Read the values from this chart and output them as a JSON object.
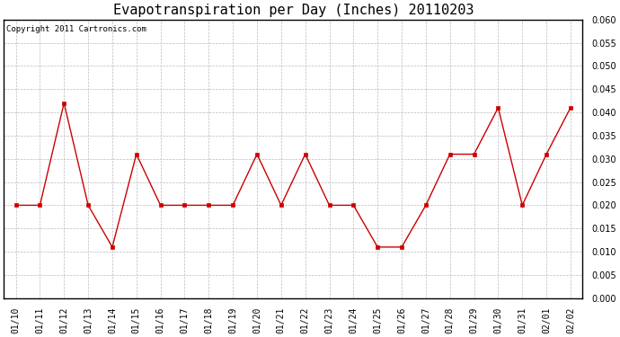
{
  "title": "Evapotranspiration per Day (Inches) 20110203",
  "copyright_text": "Copyright 2011 Cartronics.com",
  "x_labels": [
    "01/10",
    "01/11",
    "01/12",
    "01/13",
    "01/14",
    "01/15",
    "01/16",
    "01/17",
    "01/18",
    "01/19",
    "01/20",
    "01/21",
    "01/22",
    "01/23",
    "01/24",
    "01/25",
    "01/26",
    "01/27",
    "01/28",
    "01/29",
    "01/30",
    "01/31",
    "02/01",
    "02/02"
  ],
  "y_values": [
    0.02,
    0.02,
    0.042,
    0.02,
    0.011,
    0.031,
    0.02,
    0.02,
    0.02,
    0.02,
    0.031,
    0.02,
    0.031,
    0.02,
    0.02,
    0.011,
    0.011,
    0.02,
    0.031,
    0.031,
    0.041,
    0.02,
    0.031,
    0.041
  ],
  "line_color": "#cc0000",
  "marker": "s",
  "marker_size": 2.5,
  "ylim": [
    0.0,
    0.06
  ],
  "yticks": [
    0.0,
    0.005,
    0.01,
    0.015,
    0.02,
    0.025,
    0.03,
    0.035,
    0.04,
    0.045,
    0.05,
    0.055,
    0.06
  ],
  "grid_color": "#bbbbbb",
  "background_color": "#ffffff",
  "title_fontsize": 11,
  "copyright_fontsize": 6.5,
  "tick_fontsize": 7,
  "fig_width": 6.9,
  "fig_height": 3.75,
  "dpi": 100
}
